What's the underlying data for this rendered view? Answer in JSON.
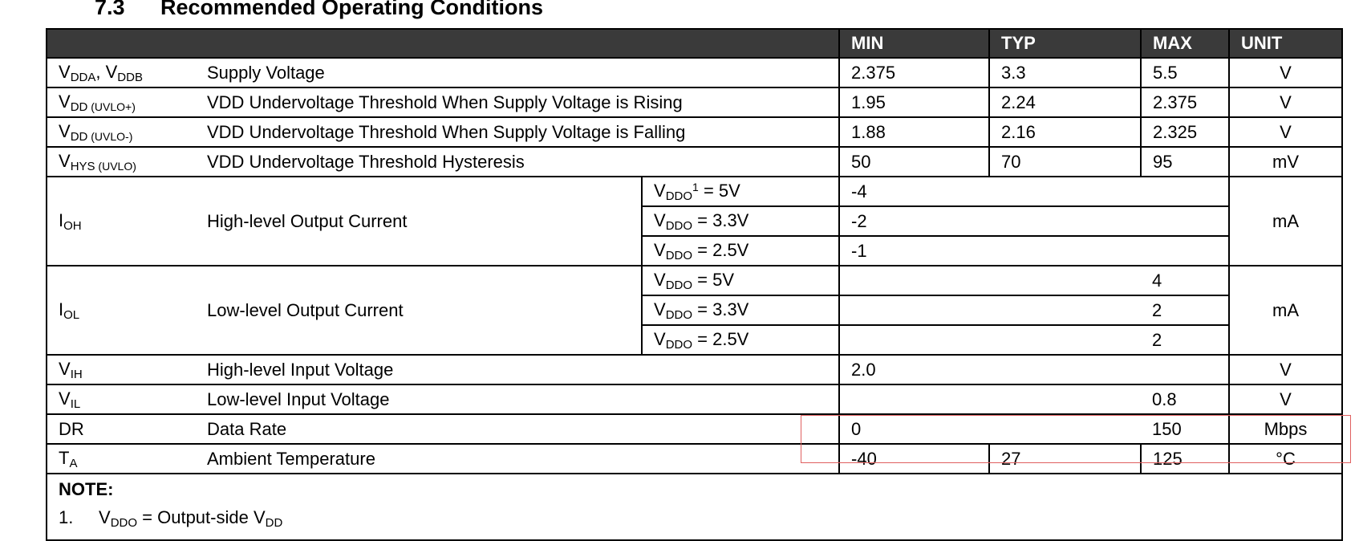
{
  "heading": {
    "number": "7.3",
    "title": "Recommended Operating Conditions"
  },
  "columns": {
    "min": "MIN",
    "typ": "TYP",
    "max": "MAX",
    "unit": "UNIT"
  },
  "rows": {
    "vdd": {
      "sym_a": "V",
      "sub_a": "DDA",
      "sep": ", ",
      "sym_b": "V",
      "sub_b": "DDB",
      "param": "Supply Voltage",
      "min": "2.375",
      "typ": "3.3",
      "max": "5.5",
      "unit": "V"
    },
    "uvlo_rise": {
      "sym": "V",
      "sub": "DD",
      "sub2": " (UVLO+)",
      "param": "VDD Undervoltage Threshold When Supply Voltage is Rising",
      "min": "1.95",
      "typ": "2.24",
      "max": "2.375",
      "unit": "V"
    },
    "uvlo_fall": {
      "sym": "V",
      "sub": "DD",
      "sub2": " (UVLO-)",
      "param": "VDD Undervoltage Threshold When Supply Voltage is Falling",
      "min": "1.88",
      "typ": "2.16",
      "max": "2.325",
      "unit": "V"
    },
    "hys": {
      "sym": "V",
      "sub": "HYS",
      "sub2": " (UVLO)",
      "param": "VDD Undervoltage Threshold Hysteresis",
      "min": "50",
      "typ": "70",
      "max": "95",
      "unit": "mV"
    },
    "ioh": {
      "sym": "I",
      "sub": "OH",
      "param": "High-level Output Current",
      "unit": "mA",
      "conditions": [
        {
          "v": "V",
          "sub": "DDO",
          "sup": "1",
          "rest": " = 5V",
          "min": "-4"
        },
        {
          "v": "V",
          "sub": "DDO",
          "sup": "",
          "rest": " = 3.3V",
          "min": "-2"
        },
        {
          "v": "V",
          "sub": "DDO",
          "sup": "",
          "rest": " = 2.5V",
          "min": "-1"
        }
      ]
    },
    "iol": {
      "sym": "I",
      "sub": "OL",
      "param": "Low-level Output Current",
      "unit": "mA",
      "conditions": [
        {
          "v": "V",
          "sub": "DDO",
          "rest": " = 5V",
          "max": "4"
        },
        {
          "v": "V",
          "sub": "DDO",
          "rest": " = 3.3V",
          "max": "2"
        },
        {
          "v": "V",
          "sub": "DDO",
          "rest": " = 2.5V",
          "max": "2"
        }
      ]
    },
    "vih": {
      "sym": "V",
      "sub": "IH",
      "param": "High-level Input Voltage",
      "min": "2.0",
      "unit": "V"
    },
    "vil": {
      "sym": "V",
      "sub": "IL",
      "param": "Low-level Input Voltage",
      "max": "0.8",
      "unit": "V"
    },
    "dr": {
      "sym": "DR",
      "param": "Data Rate",
      "min": "0",
      "max": "150",
      "unit": "Mbps"
    },
    "ta": {
      "sym": "T",
      "sub": "A",
      "param": "Ambient Temperature",
      "min": "-40",
      "typ": "27",
      "max": "125",
      "unit": "°C"
    }
  },
  "note": {
    "title": "NOTE:",
    "index": "1.",
    "lhs": "V",
    "lhs_sub": "DDO",
    "text": " = Output-side V",
    "rhs_sub": "DD"
  },
  "highlight_color": "#e06060",
  "header_bg": "#3a3a3a"
}
